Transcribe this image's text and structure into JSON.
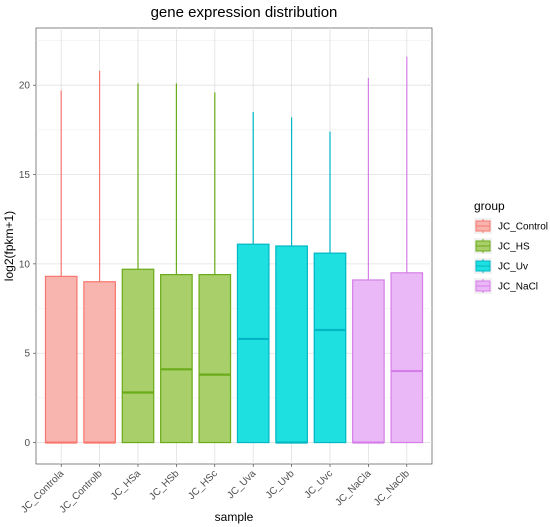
{
  "chart_data": {
    "type": "boxplot",
    "title": "gene expression distribution",
    "xlabel": "sample",
    "ylabel": "log2(fpkm+1)",
    "ylim": [
      -1.2,
      23.2
    ],
    "yticks": [
      0,
      5,
      10,
      15,
      20
    ],
    "grid": true,
    "legend": {
      "title": "group",
      "placement": "right",
      "entries": [
        {
          "label": "JC_Control",
          "fill": "#f8b4ae",
          "stroke": "#f8766d"
        },
        {
          "label": "JC_HS",
          "fill": "#a9cf6a",
          "stroke": "#6aab19"
        },
        {
          "label": "JC_Uv",
          "fill": "#1fe0e0",
          "stroke": "#00b6c4"
        },
        {
          "label": "JC_NaCl",
          "fill": "#eab7f7",
          "stroke": "#d57ee8"
        }
      ]
    },
    "categories": [
      "JC_Controla",
      "JC_Controlb",
      "JC_HSa",
      "JC_HSb",
      "JC_HSc",
      "JC_Uva",
      "JC_Uvb",
      "JC_Uvc",
      "JC_NaCla",
      "JC_NaClb"
    ],
    "boxes": [
      {
        "sample": "JC_Controla",
        "group": "JC_Control",
        "min": 0,
        "q1": 0,
        "median": 0,
        "q3": 9.3,
        "max": 19.7
      },
      {
        "sample": "JC_Controlb",
        "group": "JC_Control",
        "min": 0,
        "q1": 0,
        "median": 0,
        "q3": 9.0,
        "max": 20.8
      },
      {
        "sample": "JC_HSa",
        "group": "JC_HS",
        "min": 0,
        "q1": 0,
        "median": 2.8,
        "q3": 9.7,
        "max": 20.1
      },
      {
        "sample": "JC_HSb",
        "group": "JC_HS",
        "min": 0,
        "q1": 0,
        "median": 4.1,
        "q3": 9.4,
        "max": 20.1
      },
      {
        "sample": "JC_HSc",
        "group": "JC_HS",
        "min": 0,
        "q1": 0,
        "median": 3.8,
        "q3": 9.4,
        "max": 19.6
      },
      {
        "sample": "JC_Uva",
        "group": "JC_Uv",
        "min": 0,
        "q1": 0,
        "median": 5.8,
        "q3": 11.1,
        "max": 18.5
      },
      {
        "sample": "JC_Uvb",
        "group": "JC_Uv",
        "min": 0,
        "q1": 0,
        "median": 0,
        "q3": 11.0,
        "max": 18.2
      },
      {
        "sample": "JC_Uvc",
        "group": "JC_Uv",
        "min": 0,
        "q1": 0,
        "median": 6.3,
        "q3": 10.6,
        "max": 17.4
      },
      {
        "sample": "JC_NaCla",
        "group": "JC_NaCl",
        "min": 0,
        "q1": 0,
        "median": 0,
        "q3": 9.1,
        "max": 20.4
      },
      {
        "sample": "JC_NaClb",
        "group": "JC_NaCl",
        "min": 0,
        "q1": 0,
        "median": 4.0,
        "q3": 9.5,
        "max": 21.6
      }
    ]
  }
}
